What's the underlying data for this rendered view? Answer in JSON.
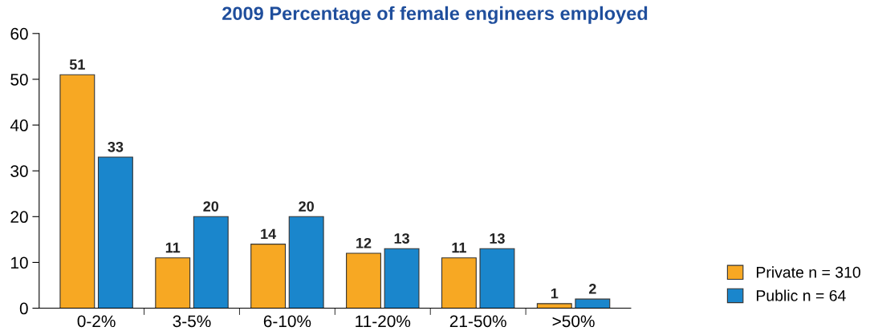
{
  "chart_data": {
    "type": "bar",
    "title": "2009 Percentage of female engineers employed",
    "categories": [
      "0-2%",
      "3-5%",
      "6-10%",
      "11-20%",
      "21-50%",
      ">50%"
    ],
    "series": [
      {
        "name": "Private n = 310",
        "color": "#f7a823",
        "values": [
          51,
          11,
          14,
          12,
          11,
          1
        ]
      },
      {
        "name": "Public n = 64",
        "color": "#1a86cc",
        "values": [
          33,
          20,
          20,
          13,
          13,
          2
        ]
      }
    ],
    "ylim": [
      0,
      60
    ],
    "yticks": [
      0,
      10,
      20,
      30,
      40,
      50,
      60
    ],
    "grid": false,
    "legend": "bottom right",
    "data_labels": true
  }
}
